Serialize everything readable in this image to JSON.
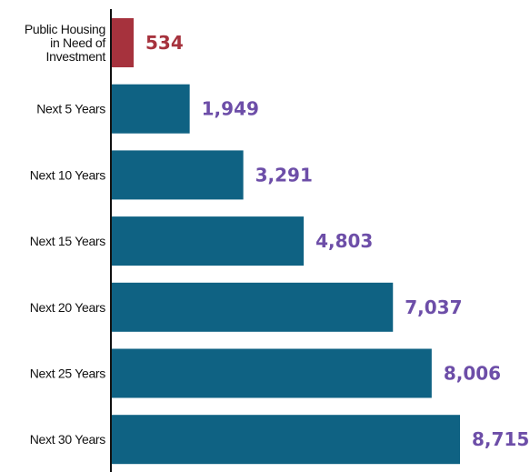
{
  "chart_data": {
    "type": "bar",
    "orientation": "horizontal",
    "categories": [
      [
        "Public Housing",
        "in Need of",
        "Investment"
      ],
      [
        "Next 5 Years"
      ],
      [
        "Next 10 Years"
      ],
      [
        "Next 15 Years"
      ],
      [
        "Next 20 Years"
      ],
      [
        "Next 25 Years"
      ],
      [
        "Next 30 Years"
      ]
    ],
    "values": [
      534,
      1949,
      3291,
      4803,
      7037,
      8006,
      8715
    ],
    "value_labels": [
      "534",
      "1,949",
      "3,291",
      "4,803",
      "7,037",
      "8,006",
      "8,715"
    ],
    "bar_colors": [
      "#a6323d",
      "#0f6283",
      "#0f6283",
      "#0f6283",
      "#0f6283",
      "#0f6283",
      "#0f6283"
    ],
    "label_colors": [
      "#a6323d",
      "#6d4ea8",
      "#6d4ea8",
      "#6d4ea8",
      "#6d4ea8",
      "#6d4ea8",
      "#6d4ea8"
    ],
    "xlim": [
      0,
      9500
    ],
    "grid": false,
    "legend": "none"
  }
}
